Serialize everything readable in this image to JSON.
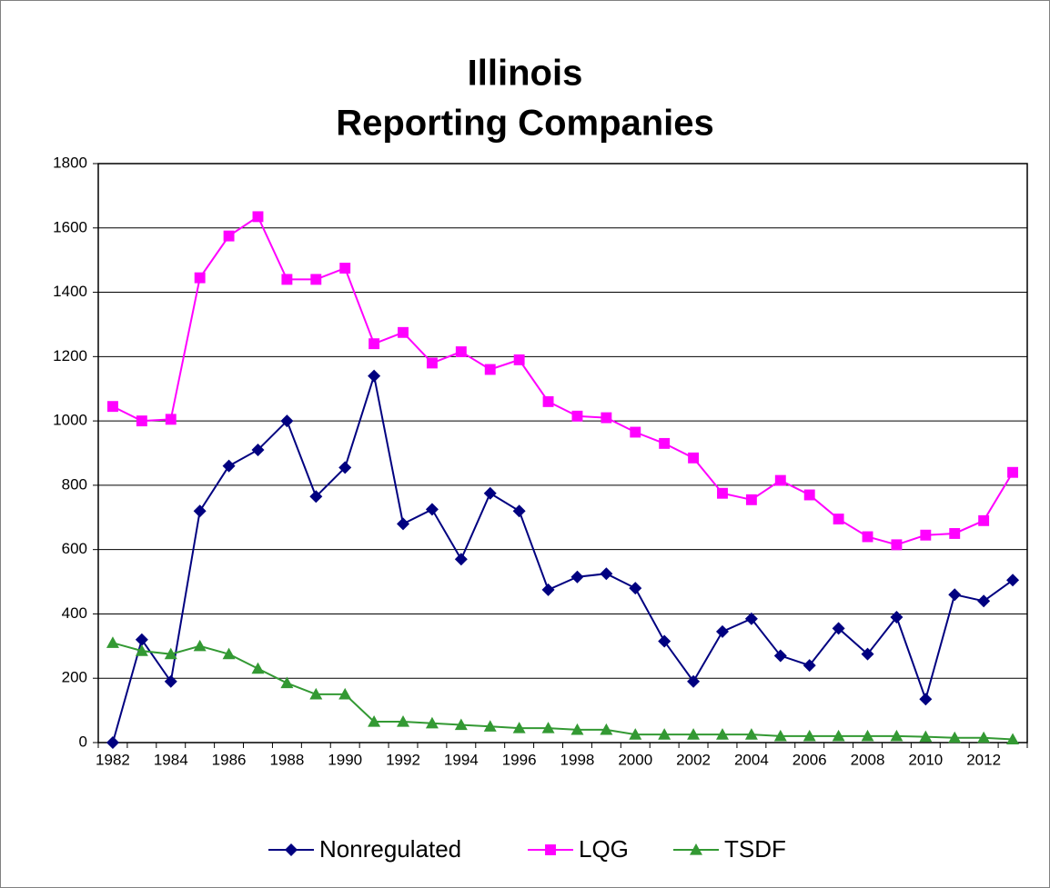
{
  "chart_data": {
    "type": "line",
    "title": [
      "Illinois",
      "Reporting Companies"
    ],
    "categories": [
      "1982",
      null,
      "1984",
      null,
      "1986",
      null,
      "1988",
      null,
      "1990",
      null,
      "1992",
      null,
      "1994",
      null,
      "1996",
      null,
      "1998",
      null,
      "2000",
      null,
      "2002",
      null,
      "2004",
      null,
      "2006",
      null,
      "2008",
      null,
      "2010",
      null,
      "2012",
      null
    ],
    "series": [
      {
        "name": "Nonregulated",
        "color": "#000080",
        "marker": "diamond",
        "values": [
          0,
          320,
          190,
          720,
          860,
          910,
          1000,
          765,
          855,
          1140,
          680,
          725,
          570,
          775,
          720,
          475,
          515,
          525,
          480,
          315,
          190,
          345,
          385,
          270,
          240,
          355,
          275,
          390,
          135,
          460,
          440,
          505
        ]
      },
      {
        "name": "LQG",
        "color": "#ff00ff",
        "marker": "square",
        "values": [
          1045,
          1000,
          1005,
          1445,
          1575,
          1635,
          1440,
          1440,
          1475,
          1240,
          1275,
          1180,
          1215,
          1160,
          1190,
          1060,
          1015,
          1010,
          965,
          930,
          885,
          775,
          755,
          815,
          770,
          695,
          640,
          615,
          645,
          650,
          690,
          840
        ]
      },
      {
        "name": "TSDF",
        "color": "#339933",
        "marker": "triangle",
        "values": [
          310,
          285,
          275,
          300,
          275,
          230,
          185,
          150,
          150,
          65,
          65,
          60,
          55,
          50,
          45,
          45,
          40,
          40,
          25,
          25,
          25,
          25,
          25,
          20,
          20,
          20,
          20,
          20,
          18,
          15,
          15,
          10
        ]
      }
    ],
    "ylim": [
      0,
      1800
    ],
    "yticks": [
      0,
      200,
      400,
      600,
      800,
      1000,
      1200,
      1400,
      1600,
      1800
    ],
    "grid": true,
    "legend": "bottom"
  }
}
